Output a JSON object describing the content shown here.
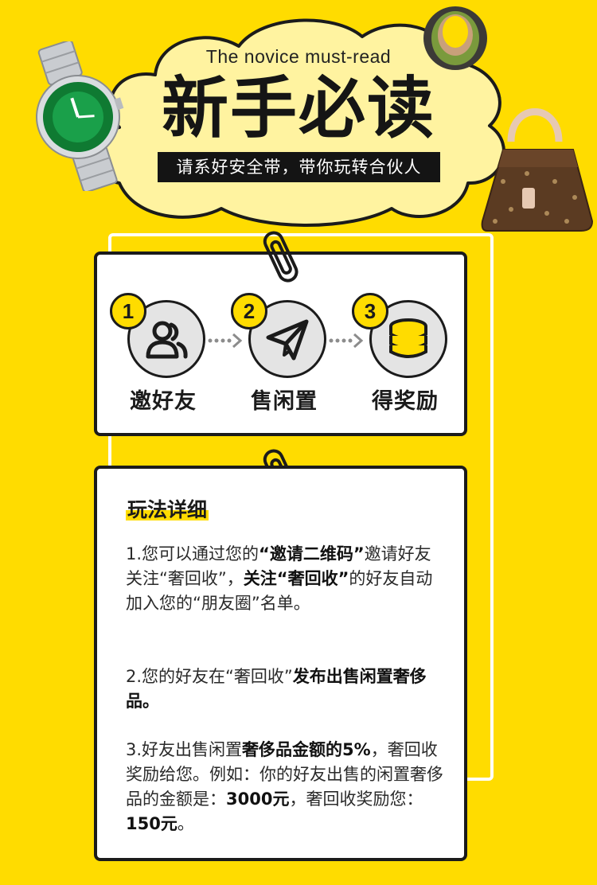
{
  "header": {
    "subtitle_en": "The novice must-read",
    "title": "新手必读",
    "tagline": "请系好安全带，带你玩转合伙人"
  },
  "steps": [
    {
      "number": "1",
      "label": "邀好友",
      "icon": "users-icon"
    },
    {
      "number": "2",
      "label": "售闲置",
      "icon": "paper-plane-icon"
    },
    {
      "number": "3",
      "label": "得奖励",
      "icon": "coins-stack-icon"
    }
  ],
  "details": {
    "heading": "玩法详细",
    "p1": {
      "a": "1.您可以通过您的",
      "b": "“邀请二维码”",
      "c": "邀请好友关注“奢回收”，",
      "d": "关注“奢回收”",
      "e": "的好友自动加入您的“朋友圈”名单。"
    },
    "p2": {
      "a": "2.您的好友在“奢回收”",
      "b": "发布出售闲置奢侈品。"
    },
    "p3": {
      "a": "3.好友出售闲置",
      "b": "奢侈品金额的5%",
      "c": "，奢回收奖励给您。例如：你的好友出售的闲置奢侈品的金额是：",
      "d": "3000元",
      "e": "，奢回收奖励您：",
      "f": "150元",
      "g": "。"
    }
  },
  "colors": {
    "background": "#FFDC00",
    "cloud": "#FFF3A0",
    "dark": "#1B1B1B",
    "card": "#FFFFFF"
  }
}
